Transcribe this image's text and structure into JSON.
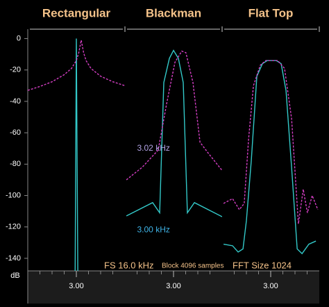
{
  "chart_data": [
    {
      "type": "line",
      "title": "Rectangular",
      "xlim": [
        2.8,
        3.2
      ],
      "xticks": [
        {
          "value": 3.0,
          "label": "3.00"
        }
      ],
      "ylim": [
        -148,
        6
      ],
      "yticks": [
        0,
        -20,
        -40,
        -60,
        -80,
        -100,
        -120,
        -140
      ],
      "y_label": "dB",
      "series": [
        {
          "name": "3.00 kHz",
          "color": "#33c9c9",
          "dash": false,
          "x": [
            2.995,
            3.0,
            3.006
          ],
          "values": [
            -148,
            0,
            -148
          ]
        },
        {
          "name": "3.02 kHz",
          "color": "#d43fc4",
          "dash": true,
          "x": [
            2.8,
            2.85,
            2.9,
            2.95,
            2.98,
            3.0,
            3.01,
            3.02,
            3.03,
            3.04,
            3.06,
            3.1,
            3.15,
            3.2
          ],
          "values": [
            -33,
            -30.5,
            -27.5,
            -23,
            -19,
            -14,
            -9,
            -1,
            -9,
            -14,
            -19,
            -24,
            -27.5,
            -30
          ]
        }
      ]
    },
    {
      "type": "line",
      "title": "Blackman",
      "xlim": [
        2.8,
        3.2
      ],
      "xticks": [
        {
          "value": 3.0,
          "label": "3.00"
        }
      ],
      "ylim": [
        -148,
        6
      ],
      "yticks": [
        0,
        -20,
        -40,
        -60,
        -80,
        -100,
        -120,
        -140
      ],
      "annotations": [
        {
          "text": "3.02 kHz",
          "color": "#b3a3e6",
          "x": 2.85,
          "y": -70
        },
        {
          "text": "3.00 kHz",
          "color": "#3fb3e6",
          "x": 2.85,
          "y": -122
        }
      ],
      "series": [
        {
          "name": "3.00 kHz",
          "color": "#33c9c9",
          "dash": false,
          "x": [
            2.806,
            2.914,
            2.943,
            2.96,
            2.983,
            3.0,
            3.02,
            3.04,
            3.057,
            3.086,
            3.2
          ],
          "values": [
            -113,
            -104.5,
            -111,
            -28,
            -12.6,
            -7.5,
            -12.6,
            -28,
            -111,
            -104.5,
            -113.5
          ]
        },
        {
          "name": "3.02 kHz",
          "color": "#d43fc4",
          "dash": true,
          "x": [
            2.806,
            2.871,
            2.937,
            2.971,
            3.006,
            3.034,
            3.051,
            3.08,
            3.109,
            3.143,
            3.2
          ],
          "values": [
            -90,
            -82,
            -71,
            -42,
            -15,
            -8,
            -9,
            -28,
            -66,
            -73,
            -84
          ]
        }
      ]
    },
    {
      "type": "line",
      "title": "Flat Top",
      "xlim": [
        2.8,
        3.2
      ],
      "xticks": [
        {
          "value": 3.0,
          "label": "3.00"
        }
      ],
      "ylim": [
        -148,
        6
      ],
      "yticks": [
        0,
        -20,
        -40,
        -60,
        -80,
        -100,
        -120,
        -140
      ],
      "series": [
        {
          "name": "3.00 kHz",
          "color": "#33c9c9",
          "dash": false,
          "x": [
            2.806,
            2.843,
            2.866,
            2.886,
            2.9,
            2.92,
            2.943,
            2.966,
            2.986,
            3.023,
            3.043,
            3.063,
            3.086,
            3.109,
            3.129,
            3.157,
            3.186
          ],
          "values": [
            -131,
            -132,
            -136,
            -134,
            -116,
            -78,
            -24,
            -16,
            -14,
            -14,
            -16,
            -33,
            -82,
            -134,
            -137,
            -131,
            -129
          ]
        },
        {
          "name": "3.02 kHz",
          "color": "#d43fc4",
          "dash": true,
          "x": [
            2.806,
            2.843,
            2.871,
            2.891,
            2.909,
            2.929,
            2.957,
            2.98,
            3.029,
            3.057,
            3.086,
            3.114,
            3.134,
            3.151,
            3.171,
            3.194
          ],
          "values": [
            -105,
            -102,
            -109,
            -105,
            -64,
            -30,
            -17,
            -14,
            -14,
            -19,
            -51,
            -118,
            -96,
            -111,
            -100,
            -109
          ]
        }
      ]
    }
  ],
  "footer": [
    {
      "text": "FS 16.0 kHz",
      "size": 13
    },
    {
      "text": "Block 4096 samples",
      "size": 10
    },
    {
      "text": "FFT Size 1024",
      "size": 13
    }
  ]
}
